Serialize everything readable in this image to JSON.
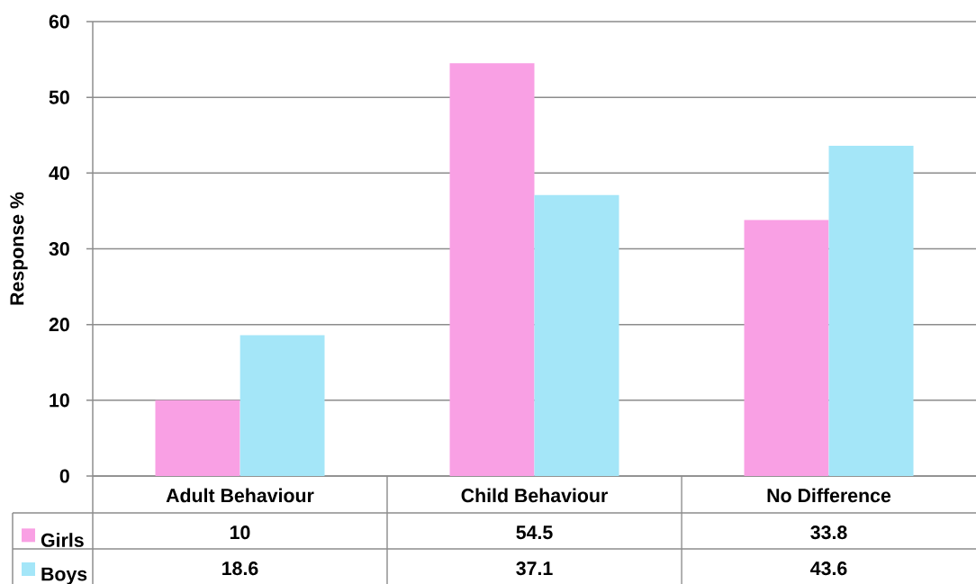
{
  "chart_data": {
    "type": "bar",
    "ylabel": "Response %",
    "categories": [
      "Adult Behaviour",
      "Child Behaviour",
      "No Difference"
    ],
    "series": [
      {
        "name": "Girls",
        "color": "#f9a0e4",
        "values": [
          10,
          54.5,
          33.8
        ]
      },
      {
        "name": "Boys",
        "color": "#a4e6f8",
        "values": [
          18.6,
          37.1,
          43.6
        ]
      }
    ],
    "ylim": [
      0,
      60
    ],
    "yticks": [
      0,
      10,
      20,
      30,
      40,
      50,
      60
    ],
    "grid": "y",
    "legend": "bottom left",
    "data_labels": true
  }
}
